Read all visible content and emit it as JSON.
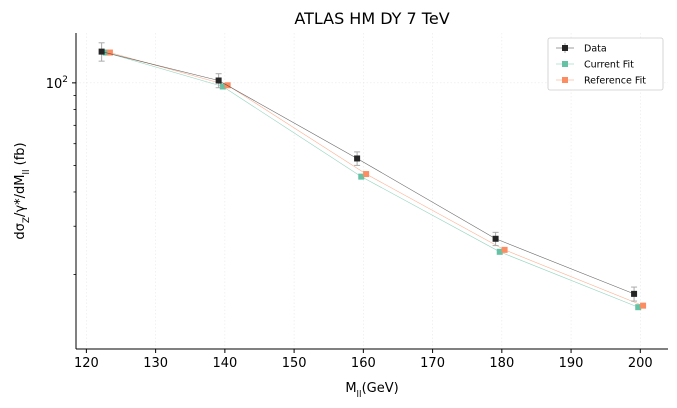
{
  "chart_data": {
    "type": "line",
    "title": "ATLAS HM DY 7 TeV",
    "xlabel": "M_ll(GeV)",
    "ylabel": "dσ_Z/γ*/dM_ll (fb)",
    "xlim": [
      118.5,
      204
    ],
    "ylim": [
      10.7,
      152
    ],
    "yscale": "log",
    "grid": true,
    "legend_position": "top-right",
    "x_ticks": [
      120,
      130,
      140,
      150,
      160,
      170,
      180,
      190,
      200
    ],
    "y_ticks": [
      100
    ],
    "y_tick_labels": [
      "10^2"
    ],
    "series": [
      {
        "name": "Data",
        "color": "#262626",
        "marker": "square",
        "x": [
          122.2,
          139.1,
          159.1,
          179.1,
          199.1
        ],
        "values": [
          130,
          102,
          53,
          27,
          17
        ],
        "err": [
          10,
          6,
          3,
          1.5,
          1
        ]
      },
      {
        "name": "Current Fit",
        "color": "#66c2a5",
        "marker": "square",
        "x": [
          122.8,
          139.7,
          159.7,
          179.7,
          199.7
        ],
        "values": [
          129,
          97,
          45.5,
          24.2,
          15.2
        ]
      },
      {
        "name": "Reference Fit",
        "color": "#fc8d62",
        "marker": "square",
        "x": [
          123.4,
          140.4,
          160.4,
          180.4,
          200.4
        ],
        "values": [
          129,
          98,
          46.5,
          24.6,
          15.4
        ]
      }
    ]
  }
}
